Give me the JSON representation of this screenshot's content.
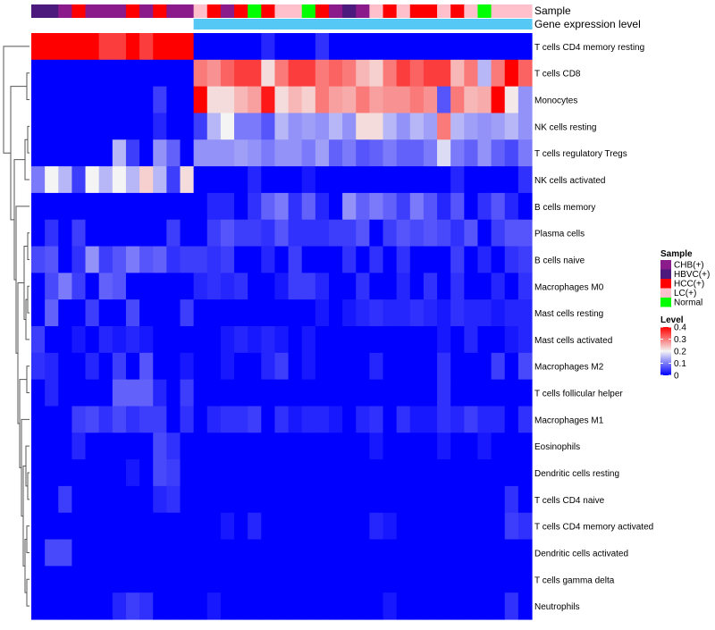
{
  "chart_data": {
    "type": "heatmap",
    "title": "",
    "annotation_tracks": [
      "Sample",
      "Gene expression level"
    ],
    "sample_groups": [
      "CHB(+)",
      "HBVC(+)",
      "HCC(+)",
      "LC(+)",
      "Normal"
    ],
    "sample_annotation": [
      1,
      1,
      0,
      2,
      0,
      0,
      0,
      2,
      0,
      2,
      0,
      0,
      3,
      2,
      0,
      2,
      4,
      2,
      3,
      3,
      4,
      2,
      0,
      1,
      0,
      3,
      2,
      3,
      2,
      2,
      3,
      2,
      3,
      4,
      3,
      3,
      3
    ],
    "gene_expression_level": [
      0,
      0,
      0,
      0,
      0,
      0,
      0,
      0,
      0,
      0,
      0,
      0,
      1,
      1,
      1,
      1,
      1,
      1,
      1,
      1,
      1,
      1,
      1,
      1,
      1,
      1,
      1,
      1,
      1,
      1,
      1,
      1,
      1,
      1,
      1,
      1,
      1
    ],
    "row_labels": [
      "T cells CD4 memory resting",
      "T cells CD8",
      "Monocytes",
      "NK cells resting",
      "T cells regulatory  Tregs",
      "NK cells activated",
      "B cells memory",
      "Plasma cells",
      "B cells naive",
      "Macrophages M0",
      "Mast cells resting",
      "Mast cells activated",
      "Macrophages M2",
      "T cells follicular helper",
      "Macrophages M1",
      "Eosinophils",
      "Dendritic cells resting",
      "T cells CD4 naive",
      "T cells CD4 memory activated",
      "Dendritic cells activated",
      "T cells gamma delta",
      "Neutrophils"
    ],
    "values": [
      [
        0.4,
        0.4,
        0.4,
        0.4,
        0.4,
        0.35,
        0.35,
        0.4,
        0.35,
        0.4,
        0.4,
        0.4,
        0,
        0,
        0,
        0,
        0,
        0.03,
        0,
        0,
        0,
        0.04,
        0,
        0,
        0,
        0,
        0,
        0,
        0,
        0,
        0,
        0,
        0,
        0,
        0,
        0,
        0
      ],
      [
        0,
        0,
        0,
        0,
        0,
        0,
        0,
        0,
        0,
        0,
        0,
        0,
        0.3,
        0.28,
        0.32,
        0.35,
        0.35,
        0.22,
        0.3,
        0.35,
        0.35,
        0.3,
        0.32,
        0.3,
        0.25,
        0.23,
        0.3,
        0.35,
        0.32,
        0.35,
        0.35,
        0.25,
        0.3,
        0.15,
        0.3,
        0.4,
        0.32
      ],
      [
        0,
        0,
        0,
        0,
        0,
        0,
        0,
        0,
        0,
        0.05,
        0,
        0,
        0.4,
        0.22,
        0.22,
        0.25,
        0.27,
        0.38,
        0.22,
        0.25,
        0.23,
        0.3,
        0.27,
        0.26,
        0.3,
        0.27,
        0.28,
        0.28,
        0.3,
        0.28,
        0.07,
        0.3,
        0.25,
        0.26,
        0.4,
        0.21,
        0.12
      ],
      [
        0,
        0,
        0,
        0,
        0,
        0,
        0,
        0,
        0,
        0.03,
        0,
        0,
        0.05,
        0.15,
        0.2,
        0.1,
        0.1,
        0.07,
        0.15,
        0.12,
        0.13,
        0.12,
        0.15,
        0.12,
        0.22,
        0.22,
        0.15,
        0.12,
        0.15,
        0.13,
        0.3,
        0.15,
        0.13,
        0.12,
        0.13,
        0.15,
        0.12
      ],
      [
        0,
        0,
        0,
        0,
        0,
        0,
        0.15,
        0.05,
        0,
        0.12,
        0.08,
        0,
        0.12,
        0.12,
        0.12,
        0.13,
        0.12,
        0.1,
        0.12,
        0.12,
        0.1,
        0.13,
        0.08,
        0.1,
        0.07,
        0.08,
        0.1,
        0.08,
        0.08,
        0.1,
        0.18,
        0.1,
        0.08,
        0.12,
        0.08,
        0.06,
        0.1
      ],
      [
        0.1,
        0.2,
        0.15,
        0.05,
        0.2,
        0.15,
        0.2,
        0.15,
        0.23,
        0.15,
        0.05,
        0.22,
        0,
        0,
        0,
        0,
        0.03,
        0,
        0,
        0,
        0.02,
        0,
        0,
        0,
        0,
        0,
        0,
        0,
        0,
        0,
        0,
        0.03,
        0,
        0,
        0,
        0,
        0.04
      ],
      [
        0,
        0,
        0,
        0,
        0,
        0,
        0,
        0,
        0,
        0,
        0,
        0,
        0,
        0.03,
        0.03,
        0,
        0.04,
        0.08,
        0.1,
        0.04,
        0.08,
        0.03,
        0,
        0.12,
        0.08,
        0.1,
        0.08,
        0.05,
        0.1,
        0.07,
        0.03,
        0.07,
        0,
        0.04,
        0.07,
        0.03,
        0
      ],
      [
        0,
        0.04,
        0,
        0.05,
        0,
        0,
        0,
        0,
        0,
        0,
        0.05,
        0,
        0,
        0.05,
        0.07,
        0.05,
        0.05,
        0.04,
        0.07,
        0.04,
        0.04,
        0.04,
        0.05,
        0.05,
        0.07,
        0,
        0.05,
        0.07,
        0.06,
        0.07,
        0.06,
        0.04,
        0.07,
        0,
        0.05,
        0.07,
        0.07
      ],
      [
        0.06,
        0.07,
        0,
        0.04,
        0.12,
        0.05,
        0.07,
        0.1,
        0.07,
        0.08,
        0.04,
        0.05,
        0.05,
        0.04,
        0.05,
        0,
        0,
        0.03,
        0,
        0.05,
        0,
        0,
        0,
        0.04,
        0,
        0.04,
        0,
        0.04,
        0,
        0,
        0,
        0.05,
        0,
        0.03,
        0,
        0.04,
        0.05
      ],
      [
        0,
        0.06,
        0.1,
        0.05,
        0,
        0.08,
        0.07,
        0,
        0,
        0,
        0,
        0,
        0.03,
        0.04,
        0.03,
        0.04,
        0,
        0,
        0.02,
        0.05,
        0.05,
        0.03,
        0,
        0,
        0.04,
        0,
        0,
        0.03,
        0,
        0.04,
        0,
        0.04,
        0,
        0,
        0.03,
        0,
        0.04
      ],
      [
        0,
        0.08,
        0,
        0,
        0.05,
        0,
        0,
        0.06,
        0,
        0,
        0,
        0.05,
        0,
        0,
        0,
        0,
        0,
        0,
        0,
        0,
        0,
        0.02,
        0,
        0.02,
        0.03,
        0.04,
        0.03,
        0.03,
        0.04,
        0.03,
        0.02,
        0.04,
        0.03,
        0.03,
        0.02,
        0.03,
        0.03
      ],
      [
        0.05,
        0,
        0,
        0.02,
        0,
        0.03,
        0.02,
        0.03,
        0.02,
        0,
        0,
        0,
        0,
        0,
        0.02,
        0.03,
        0.02,
        0.03,
        0.02,
        0,
        0.02,
        0,
        0,
        0,
        0,
        0,
        0,
        0,
        0,
        0,
        0.02,
        0,
        0.03,
        0,
        0,
        0.02,
        0.03
      ],
      [
        0.04,
        0.03,
        0,
        0,
        0.03,
        0,
        0.05,
        0,
        0.07,
        0,
        0,
        0.02,
        0,
        0,
        0.02,
        0,
        0,
        0.03,
        0.05,
        0,
        0.02,
        0,
        0,
        0,
        0,
        0.03,
        0,
        0,
        0,
        0,
        0.04,
        0,
        0,
        0,
        0.05,
        0,
        0.06
      ],
      [
        0,
        0.03,
        0,
        0,
        0,
        0,
        0.08,
        0.08,
        0.08,
        0.03,
        0,
        0.05,
        0,
        0,
        0,
        0,
        0,
        0,
        0,
        0,
        0,
        0,
        0,
        0,
        0,
        0,
        0,
        0,
        0,
        0,
        0.04,
        0,
        0,
        0,
        0,
        0,
        0
      ],
      [
        0,
        0,
        0,
        0.05,
        0.06,
        0.04,
        0.06,
        0.04,
        0.05,
        0.05,
        0,
        0.04,
        0,
        0.03,
        0.04,
        0.04,
        0.05,
        0,
        0.04,
        0.02,
        0.03,
        0.03,
        0.02,
        0,
        0.03,
        0.04,
        0,
        0.04,
        0.02,
        0.02,
        0.04,
        0.03,
        0.05,
        0.03,
        0.03,
        0,
        0.04
      ],
      [
        0,
        0,
        0,
        0.03,
        0,
        0,
        0,
        0,
        0,
        0.06,
        0.04,
        0,
        0,
        0,
        0,
        0,
        0,
        0,
        0,
        0,
        0,
        0,
        0,
        0,
        0,
        0.02,
        0,
        0,
        0,
        0,
        0.02,
        0,
        0,
        0.02,
        0,
        0,
        0
      ],
      [
        0,
        0,
        0,
        0,
        0,
        0,
        0,
        0.02,
        0,
        0.06,
        0.05,
        0,
        0,
        0,
        0,
        0,
        0,
        0,
        0,
        0,
        0,
        0,
        0,
        0,
        0,
        0,
        0,
        0,
        0,
        0,
        0,
        0,
        0,
        0,
        0,
        0,
        0
      ],
      [
        0,
        0,
        0.05,
        0,
        0,
        0,
        0,
        0,
        0,
        0.03,
        0.04,
        0,
        0,
        0,
        0,
        0,
        0,
        0,
        0,
        0,
        0,
        0,
        0,
        0,
        0,
        0,
        0,
        0,
        0,
        0,
        0,
        0,
        0,
        0,
        0,
        0.04,
        0
      ],
      [
        0,
        0,
        0,
        0,
        0,
        0,
        0,
        0,
        0,
        0,
        0,
        0,
        0,
        0,
        0.02,
        0,
        0.03,
        0,
        0,
        0,
        0,
        0,
        0,
        0,
        0,
        0.03,
        0.02,
        0,
        0,
        0,
        0,
        0,
        0,
        0,
        0,
        0.05,
        0.04
      ],
      [
        0,
        0.06,
        0.06,
        0,
        0,
        0,
        0,
        0,
        0,
        0,
        0,
        0,
        0,
        0,
        0,
        0,
        0,
        0,
        0,
        0,
        0,
        0,
        0,
        0,
        0,
        0,
        0,
        0,
        0,
        0,
        0,
        0,
        0,
        0,
        0,
        0,
        0
      ],
      [
        0,
        0,
        0,
        0,
        0,
        0,
        0,
        0,
        0,
        0,
        0,
        0,
        0,
        0,
        0,
        0,
        0,
        0,
        0,
        0,
        0,
        0,
        0,
        0,
        0,
        0,
        0,
        0,
        0,
        0,
        0,
        0,
        0,
        0,
        0,
        0,
        0
      ],
      [
        0,
        0,
        0,
        0,
        0,
        0,
        0.03,
        0.05,
        0.04,
        0,
        0,
        0,
        0,
        0.02,
        0,
        0,
        0,
        0,
        0,
        0,
        0,
        0,
        0,
        0,
        0,
        0,
        0.02,
        0,
        0,
        0,
        0,
        0,
        0,
        0,
        0,
        0.04,
        0
      ]
    ],
    "color_scale": {
      "min": 0,
      "mid": 0.2,
      "max": 0.4,
      "low_color": "#0000ff",
      "mid_color": "#f4f4f4",
      "high_color": "#ff0000"
    },
    "sample_colors": [
      "#8b1a8b",
      "#4b1a7c",
      "#ff0000",
      "#ffc0cb",
      "#00ff00"
    ],
    "gene_expression_colors": [
      "#ffffff",
      "#56c8f5"
    ],
    "legend": {
      "sample_title": "Sample",
      "sample_entries": [
        "CHB(+)",
        "HBVC(+)",
        "HCC(+)",
        "LC(+)",
        "Normal"
      ],
      "level_title": "Level",
      "level_ticks": [
        "0.4",
        "0.3",
        "0.2",
        "0.1",
        "0"
      ],
      "level_tick_values": [
        0.4,
        0.3,
        0.2,
        0.1,
        0
      ]
    }
  }
}
